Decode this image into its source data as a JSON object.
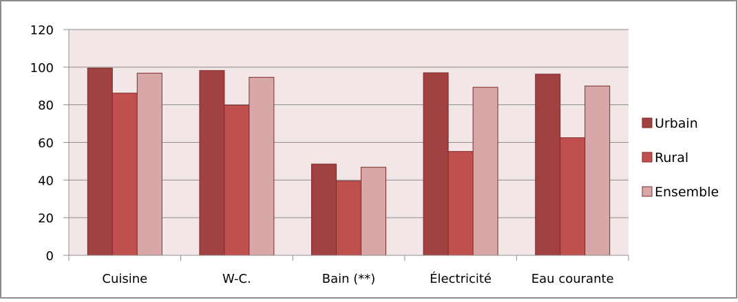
{
  "chart_data": {
    "type": "bar",
    "title": "",
    "xlabel": "",
    "ylabel": "",
    "categories": [
      "Cuisine",
      "W-C.",
      "Bain (**)",
      "Électricité",
      "Eau courante"
    ],
    "series": [
      {
        "name": "Urbain",
        "values": [
          99.5,
          98.2,
          48.5,
          97.0,
          96.3
        ]
      },
      {
        "name": "Rural",
        "values": [
          86.2,
          79.8,
          39.5,
          55.2,
          62.5
        ]
      },
      {
        "name": "Ensemble",
        "values": [
          96.8,
          94.6,
          46.8,
          89.3,
          90.0
        ]
      }
    ],
    "ylim": [
      0,
      120
    ],
    "yticks": [
      0,
      20,
      40,
      60,
      80,
      100,
      120
    ],
    "legend": {
      "position": "right"
    },
    "grid": true,
    "colors": {
      "plot_background": "#f2e6e6",
      "Urbain": "#a04040",
      "Rural": "#c0504d",
      "Ensemble": "#d8a8a8",
      "bar_border": "#7f2a2a",
      "frame": "#8c8c8c"
    }
  }
}
